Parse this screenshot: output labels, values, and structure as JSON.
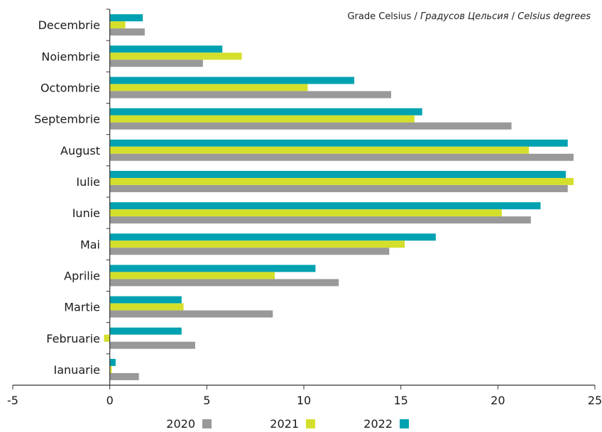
{
  "unit_note": {
    "part1": "Grade Celsius",
    "sep1": " / ",
    "part2": "Градусов Цельсия",
    "sep2": " / ",
    "part3": "Celsius degrees"
  },
  "chart_data": {
    "type": "bar",
    "orientation": "horizontal",
    "categories": [
      "Ianuarie",
      "Februarie",
      "Martie",
      "Aprilie",
      "Mai",
      "Iunie",
      "Iulie",
      "August",
      "Septembrie",
      "Octombrie",
      "Noiembrie",
      "Decembrie"
    ],
    "series": [
      {
        "name": "2020",
        "color": "#999999",
        "values": [
          1.5,
          4.4,
          8.4,
          11.8,
          14.4,
          21.7,
          23.6,
          23.9,
          20.7,
          14.5,
          4.8,
          1.8
        ]
      },
      {
        "name": "2021",
        "color": "#d4df2c",
        "values": [
          0.1,
          -0.3,
          3.8,
          8.5,
          15.2,
          20.2,
          23.9,
          21.6,
          15.7,
          10.2,
          6.8,
          0.8
        ]
      },
      {
        "name": "2022",
        "color": "#00a2b1",
        "values": [
          0.3,
          3.7,
          3.7,
          10.6,
          16.8,
          22.2,
          23.5,
          23.6,
          16.1,
          12.6,
          5.8,
          1.7
        ]
      }
    ],
    "x_ticks": [
      "-5",
      "0",
      "5",
      "10",
      "15",
      "20",
      "25"
    ],
    "xlim": [
      -5,
      25
    ],
    "grid": false,
    "legend_position": "bottom"
  }
}
